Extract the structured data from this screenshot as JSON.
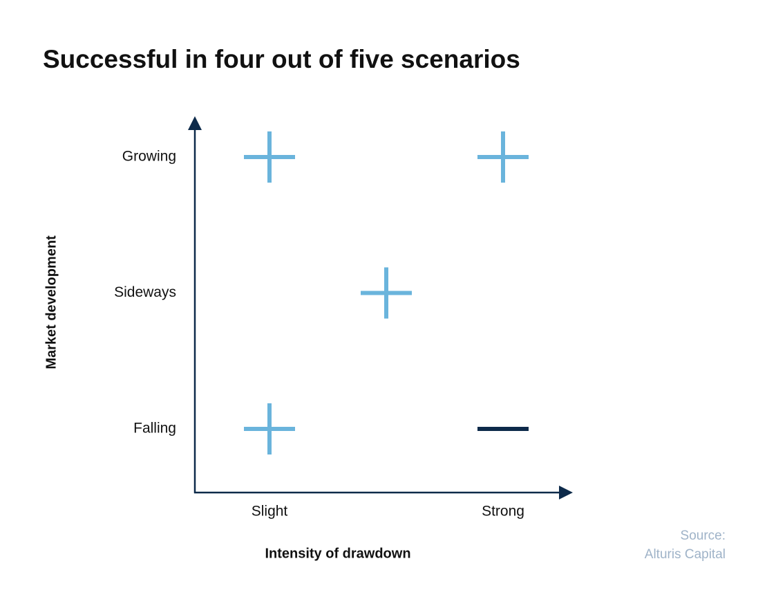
{
  "title": "Successful in four out of five scenarios",
  "y_axis_label": "Market development",
  "x_axis_label": "Intensity of drawdown",
  "y_categories": [
    "Falling",
    "Sideways",
    "Growing"
  ],
  "x_categories": [
    {
      "value": 0,
      "label": "Slight"
    },
    {
      "value": 1,
      "label": "Strong"
    }
  ],
  "scenarios": [
    {
      "x": 0,
      "y": 2,
      "symbol": "+",
      "color": "#6ab4dc"
    },
    {
      "x": 1,
      "y": 2,
      "symbol": "+",
      "color": "#6ab4dc"
    },
    {
      "x": 0.5,
      "y": 1,
      "symbol": "+",
      "color": "#6ab4dc"
    },
    {
      "x": 0,
      "y": 0,
      "symbol": "+",
      "color": "#6ab4dc"
    },
    {
      "x": 1,
      "y": 0,
      "symbol": "-",
      "color": "#0d2a4a"
    }
  ],
  "source": [
    "Source:",
    "Alturis Capital"
  ]
}
